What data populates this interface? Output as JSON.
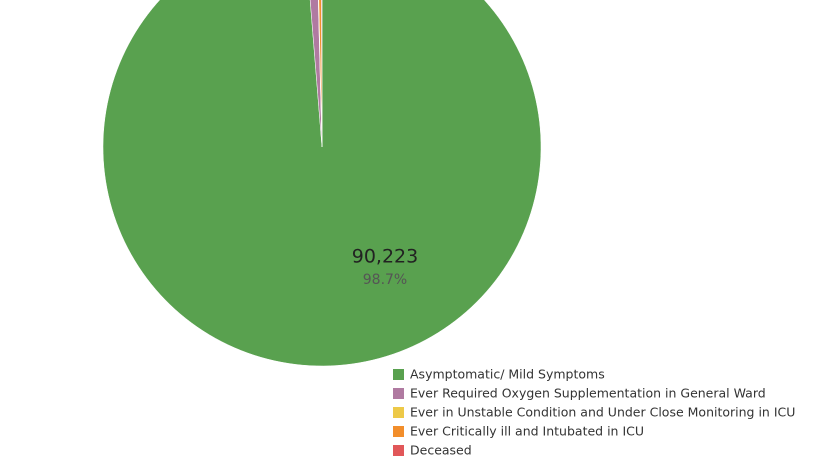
{
  "chart_data": {
    "type": "pie",
    "categories": [
      "Asymptomatic/ Mild Symptoms",
      "Ever Required Oxygen Supplementation in General Ward",
      "Ever in Unstable Condition and Under Close Monitoring in ICU",
      "Ever Critically ill and Intubated in ICU",
      "Deceased"
    ],
    "values": [
      90223,
      800,
      60,
      250,
      60
    ],
    "value_labels": [
      "90,223",
      null,
      null,
      null,
      null
    ],
    "percent_labels": [
      "98.7%",
      null,
      null,
      null,
      null
    ],
    "colors": [
      "#59a14f",
      "#b07aa1",
      "#edc948",
      "#f28e2b",
      "#e15759"
    ]
  }
}
